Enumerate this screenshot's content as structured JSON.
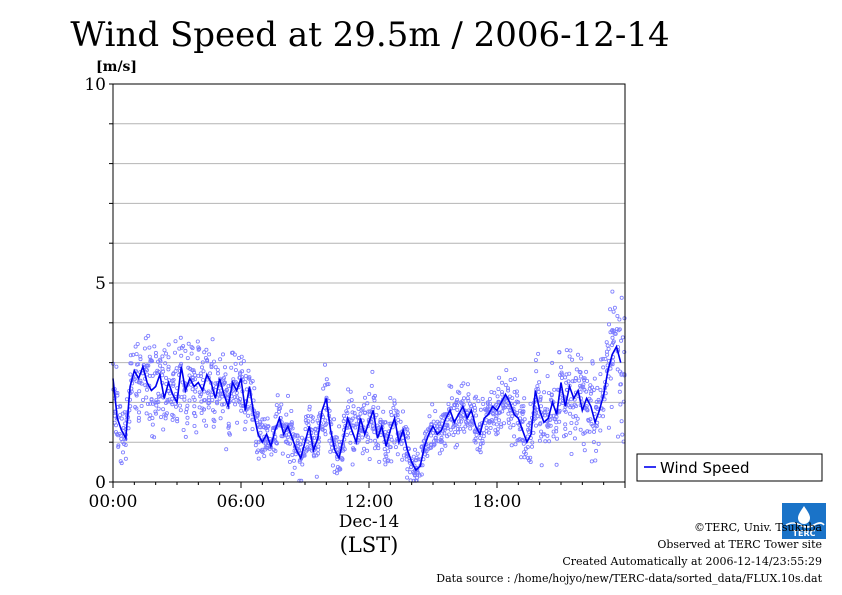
{
  "chart_data": {
    "type": "scatter",
    "title": "Wind Speed at 29.5m / 2006-12-14",
    "ylabel": "[m/s]",
    "xlabel": "(LST)",
    "date_label": "Dec-14",
    "ylim": [
      0,
      10
    ],
    "xlim_hours": [
      0,
      24
    ],
    "y_ticks": [
      "0",
      "5",
      "10"
    ],
    "x_ticks": [
      {
        "hour": 0,
        "label": "00:00"
      },
      {
        "hour": 6,
        "label": "06:00"
      },
      {
        "hour": 12,
        "label": "12:00"
      },
      {
        "hour": 18,
        "label": "18:00"
      }
    ],
    "grid": true,
    "legend": {
      "position": "right",
      "label": "Wind Speed"
    },
    "colors": {
      "line": "#0000ee",
      "points": "#7b7bff"
    },
    "series": [
      {
        "name": "Wind Speed",
        "hour": [
          0.0,
          0.2,
          0.4,
          0.6,
          0.8,
          1.0,
          1.2,
          1.4,
          1.6,
          1.8,
          2.0,
          2.2,
          2.4,
          2.6,
          2.8,
          3.0,
          3.2,
          3.4,
          3.6,
          3.8,
          4.0,
          4.2,
          4.4,
          4.6,
          4.8,
          5.0,
          5.2,
          5.4,
          5.6,
          5.8,
          6.0,
          6.2,
          6.4,
          6.6,
          6.8,
          7.0,
          7.2,
          7.4,
          7.6,
          7.8,
          8.0,
          8.2,
          8.4,
          8.6,
          8.8,
          9.0,
          9.2,
          9.4,
          9.6,
          9.8,
          10.0,
          10.2,
          10.4,
          10.6,
          10.8,
          11.0,
          11.2,
          11.4,
          11.6,
          11.8,
          12.0,
          12.2,
          12.4,
          12.6,
          12.8,
          13.0,
          13.2,
          13.4,
          13.6,
          13.8,
          14.0,
          14.2,
          14.4,
          14.6,
          14.8,
          15.0,
          15.2,
          15.4,
          15.6,
          15.8,
          16.0,
          16.2,
          16.4,
          16.6,
          16.8,
          17.0,
          17.2,
          17.4,
          17.6,
          17.8,
          18.0,
          18.2,
          18.4,
          18.6,
          18.8,
          19.0,
          19.2,
          19.4,
          19.6,
          19.8,
          20.0,
          20.2,
          20.4,
          20.6,
          20.8,
          21.0,
          21.2,
          21.4,
          21.6,
          21.8,
          22.0,
          22.2,
          22.4,
          22.6,
          22.8,
          23.0,
          23.2,
          23.4,
          23.6,
          23.8
        ],
        "mean": [
          2.6,
          1.6,
          1.3,
          1.1,
          2.4,
          2.8,
          2.6,
          2.9,
          2.5,
          2.3,
          2.4,
          2.7,
          2.1,
          2.5,
          2.2,
          2.0,
          2.9,
          2.3,
          2.6,
          2.4,
          2.5,
          2.3,
          2.7,
          2.5,
          2.1,
          2.6,
          2.2,
          1.9,
          2.5,
          2.3,
          2.6,
          1.8,
          2.4,
          1.7,
          1.2,
          1.0,
          1.2,
          0.9,
          1.3,
          1.6,
          1.2,
          1.4,
          1.1,
          0.8,
          0.6,
          1.0,
          1.4,
          0.8,
          1.1,
          1.8,
          2.1,
          1.3,
          0.8,
          0.6,
          1.1,
          1.6,
          1.3,
          1.0,
          1.6,
          1.2,
          1.5,
          1.8,
          1.1,
          1.4,
          0.9,
          1.3,
          1.6,
          1.0,
          1.3,
          0.8,
          0.5,
          0.3,
          0.4,
          0.9,
          1.2,
          1.4,
          1.2,
          1.3,
          1.6,
          1.8,
          1.5,
          1.7,
          1.9,
          1.6,
          1.8,
          1.4,
          1.2,
          1.6,
          1.7,
          1.9,
          1.8,
          2.0,
          2.2,
          2.0,
          1.7,
          1.6,
          1.3,
          1.0,
          1.2,
          2.3,
          1.8,
          1.5,
          1.6,
          2.0,
          1.7,
          2.5,
          1.9,
          2.4,
          2.1,
          2.3,
          1.8,
          2.1,
          1.9,
          1.5,
          1.8,
          2.2,
          2.8,
          3.2,
          3.4,
          3.0
        ],
        "spread": [
          0.8,
          0.7,
          0.6,
          0.6,
          0.7,
          0.7,
          0.8,
          0.9,
          0.8,
          0.8,
          0.7,
          0.7,
          0.8,
          0.8,
          0.9,
          0.8,
          0.9,
          0.8,
          0.8,
          0.8,
          0.8,
          0.8,
          0.8,
          0.7,
          0.7,
          0.8,
          0.7,
          0.7,
          0.7,
          0.7,
          0.8,
          0.6,
          0.6,
          0.6,
          0.5,
          0.5,
          0.5,
          0.5,
          0.6,
          0.5,
          0.5,
          0.6,
          0.5,
          0.5,
          0.5,
          0.6,
          0.7,
          0.6,
          0.7,
          0.7,
          0.7,
          0.6,
          0.5,
          0.5,
          0.6,
          0.7,
          0.7,
          0.6,
          0.6,
          0.7,
          0.6,
          0.6,
          0.6,
          0.6,
          0.5,
          0.6,
          0.6,
          0.5,
          0.5,
          0.5,
          0.4,
          0.3,
          0.4,
          0.5,
          0.5,
          0.5,
          0.4,
          0.5,
          0.5,
          0.5,
          0.5,
          0.5,
          0.5,
          0.5,
          0.5,
          0.5,
          0.5,
          0.5,
          0.5,
          0.5,
          0.5,
          0.5,
          0.6,
          0.6,
          0.6,
          0.6,
          0.6,
          0.6,
          0.7,
          0.9,
          0.8,
          0.8,
          0.9,
          0.9,
          0.9,
          1.0,
          0.9,
          1.0,
          1.0,
          1.0,
          0.9,
          1.0,
          1.0,
          0.9,
          0.9,
          1.1,
          1.2,
          1.3,
          1.4,
          1.3
        ]
      }
    ]
  },
  "footer": {
    "copyright": "©TERC, Univ. Tsukuba",
    "observed": "Observed at TERC Tower site",
    "created": "Created Automatically at 2006-12-14/23:55:29",
    "source": "Data source : /home/hojyo/new/TERC-data/sorted_data/FLUX.10s.dat",
    "logo_text": "TERC"
  }
}
